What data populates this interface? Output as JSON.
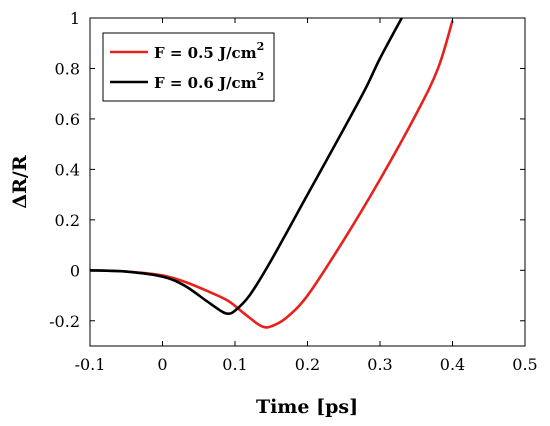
{
  "chart_data": {
    "type": "line",
    "title": "",
    "xlabel": "Time [ps]",
    "ylabel": "ΔR/R",
    "xlim": [
      -0.1,
      0.5
    ],
    "ylim": [
      -0.3,
      1.0
    ],
    "xticks": [
      "-0.1",
      "0",
      "0.1",
      "0.2",
      "0.3",
      "0.4",
      "0.5"
    ],
    "yticks": [
      "-0.2",
      "0",
      "0.2",
      "0.4",
      "0.6",
      "0.8",
      "1"
    ],
    "grid": false,
    "legend_position": "top-left",
    "series": [
      {
        "name": "F = 0.5 J/cm",
        "name_sup": "2",
        "color": "#e8211c",
        "x": [
          -0.1,
          -0.05,
          0.0,
          0.03,
          0.06,
          0.09,
          0.11,
          0.13,
          0.14,
          0.15,
          0.17,
          0.2,
          0.25,
          0.3,
          0.35,
          0.38,
          0.4
        ],
        "y": [
          0.0,
          -0.005,
          -0.02,
          -0.045,
          -0.08,
          -0.12,
          -0.165,
          -0.21,
          -0.225,
          -0.222,
          -0.19,
          -0.1,
          0.12,
          0.36,
          0.62,
          0.8,
          0.99
        ]
      },
      {
        "name": "F = 0.6 J/cm",
        "name_sup": "2",
        "color": "#000000",
        "x": [
          -0.1,
          -0.05,
          0.0,
          0.03,
          0.06,
          0.08,
          0.09,
          0.1,
          0.12,
          0.15,
          0.2,
          0.25,
          0.28,
          0.3,
          0.33
        ],
        "y": [
          0.0,
          -0.005,
          -0.025,
          -0.06,
          -0.12,
          -0.16,
          -0.172,
          -0.16,
          -0.1,
          0.04,
          0.3,
          0.56,
          0.72,
          0.84,
          1.0
        ]
      }
    ]
  }
}
